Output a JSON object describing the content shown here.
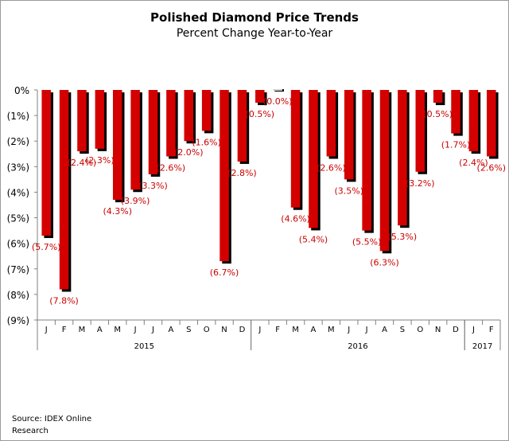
{
  "chart_data": {
    "type": "bar",
    "title": "Polished Diamond Price Trends",
    "subtitle": "Percent Change Year-to-Year",
    "source": "Source: IDEX Online Research",
    "ylim": [
      -9,
      0
    ],
    "yticks": [
      0,
      -1,
      -2,
      -3,
      -4,
      -5,
      -6,
      -7,
      -8,
      -9
    ],
    "ytick_labels": [
      "0%",
      "(1%)",
      "(2%)",
      "(3%)",
      "(4%)",
      "(5%)",
      "(6%)",
      "(7%)",
      "(8%)",
      "(9%)"
    ],
    "grid": false,
    "bar_color": "#d40000",
    "shadow_color": "#000000",
    "label_color": "#cc0000",
    "categories": [
      "J",
      "F",
      "M",
      "A",
      "M",
      "J",
      "J",
      "A",
      "S",
      "O",
      "N",
      "D",
      "J",
      "F",
      "M",
      "A",
      "M",
      "J",
      "J",
      "A",
      "S",
      "O",
      "N",
      "D",
      "J",
      "F"
    ],
    "values": [
      -5.7,
      -7.8,
      -2.4,
      -2.3,
      -4.3,
      -3.9,
      -3.3,
      -2.6,
      -2.0,
      -1.6,
      -6.7,
      -2.8,
      -0.5,
      0.0,
      -4.6,
      -5.4,
      -2.6,
      -3.5,
      -5.5,
      -6.3,
      -5.3,
      -3.2,
      -0.5,
      -1.7,
      -2.4,
      -2.6
    ],
    "data_labels": [
      "(5.7%)",
      "(7.8%)",
      "(2.4%)",
      "(2.3%)",
      "(4.3%)",
      "(3.9%)",
      "(3.3%)",
      "(2.6%)",
      "(2.0%)",
      "(1.6%)",
      "(6.7%)",
      "(2.8%)",
      "(0.5%)",
      "(0.0%)",
      "(4.6%)",
      "(5.4%)",
      "(2.6%)",
      "(3.5%)",
      "(5.5%)",
      "(6.3%)",
      "(5.3%)",
      "(3.2%)",
      "(0.5%)",
      "(1.7%)",
      "(2.4%)",
      "(2.6%)"
    ],
    "groups": [
      {
        "label": "2015",
        "start": 0,
        "count": 12
      },
      {
        "label": "2016",
        "start": 12,
        "count": 12
      },
      {
        "label": "2017",
        "start": 24,
        "count": 2
      }
    ]
  }
}
